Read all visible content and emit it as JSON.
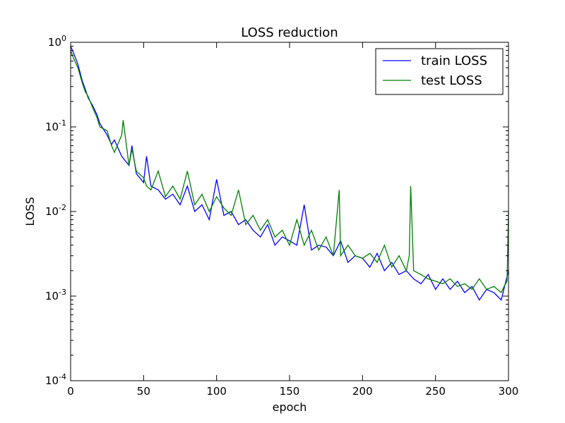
{
  "chart_data": {
    "type": "line",
    "title": "LOSS reduction",
    "xlabel": "epoch",
    "ylabel": "LOSS",
    "xlim": [
      0,
      300
    ],
    "ylim": [
      0.0001,
      1
    ],
    "yscale": "log",
    "grid": false,
    "legend_position": "top-right",
    "x_ticks": [
      0,
      50,
      100,
      150,
      200,
      250,
      300
    ],
    "x_tick_labels": [
      "0",
      "50",
      "100",
      "150",
      "200",
      "250",
      "300"
    ],
    "y_ticks": [
      1,
      0.1,
      0.01,
      0.001,
      0.0001
    ],
    "y_tick_labels": [
      {
        "base": "10",
        "exp": "0"
      },
      {
        "base": "10",
        "exp": "-1"
      },
      {
        "base": "10",
        "exp": "-2"
      },
      {
        "base": "10",
        "exp": "-3"
      },
      {
        "base": "10",
        "exp": "-4"
      }
    ],
    "series": [
      {
        "name": "train LOSS",
        "color": "#0000ff",
        "x": [
          0,
          2,
          5,
          8,
          10,
          12,
          15,
          18,
          20,
          25,
          28,
          30,
          35,
          40,
          42,
          45,
          50,
          52,
          55,
          60,
          65,
          70,
          75,
          80,
          85,
          90,
          95,
          100,
          105,
          110,
          115,
          120,
          125,
          130,
          135,
          140,
          145,
          150,
          155,
          160,
          165,
          170,
          175,
          180,
          185,
          190,
          195,
          200,
          205,
          210,
          215,
          220,
          225,
          230,
          235,
          240,
          245,
          250,
          255,
          260,
          265,
          270,
          275,
          280,
          285,
          290,
          295,
          300
        ],
        "values": [
          0.9,
          0.75,
          0.55,
          0.35,
          0.28,
          0.22,
          0.18,
          0.14,
          0.11,
          0.08,
          0.062,
          0.07,
          0.045,
          0.035,
          0.06,
          0.028,
          0.022,
          0.045,
          0.02,
          0.018,
          0.014,
          0.016,
          0.012,
          0.02,
          0.01,
          0.012,
          0.008,
          0.024,
          0.009,
          0.01,
          0.007,
          0.008,
          0.006,
          0.005,
          0.007,
          0.004,
          0.005,
          0.0045,
          0.004,
          0.012,
          0.0035,
          0.004,
          0.0038,
          0.003,
          0.0045,
          0.0025,
          0.003,
          0.0028,
          0.0022,
          0.0032,
          0.002,
          0.0025,
          0.0018,
          0.002,
          0.0016,
          0.0014,
          0.0018,
          0.0012,
          0.0016,
          0.0012,
          0.0015,
          0.0011,
          0.0013,
          0.0009,
          0.0012,
          0.0011,
          0.0009,
          0.002
        ]
      },
      {
        "name": "test LOSS",
        "color": "#008000",
        "x": [
          0,
          2,
          5,
          8,
          10,
          12,
          15,
          18,
          20,
          25,
          28,
          30,
          35,
          36,
          40,
          42,
          45,
          50,
          52,
          55,
          60,
          65,
          70,
          75,
          80,
          85,
          90,
          95,
          100,
          105,
          110,
          115,
          120,
          125,
          130,
          135,
          140,
          145,
          150,
          155,
          160,
          165,
          170,
          175,
          180,
          184,
          185,
          190,
          195,
          200,
          205,
          210,
          215,
          220,
          225,
          230,
          232,
          233,
          235,
          240,
          245,
          250,
          255,
          260,
          265,
          270,
          275,
          280,
          285,
          290,
          295,
          297,
          299,
          300
        ],
        "values": [
          0.8,
          0.65,
          0.5,
          0.33,
          0.26,
          0.23,
          0.17,
          0.13,
          0.1,
          0.09,
          0.06,
          0.05,
          0.08,
          0.12,
          0.035,
          0.055,
          0.03,
          0.025,
          0.02,
          0.018,
          0.03,
          0.015,
          0.02,
          0.014,
          0.03,
          0.012,
          0.016,
          0.01,
          0.015,
          0.011,
          0.009,
          0.018,
          0.007,
          0.009,
          0.006,
          0.008,
          0.005,
          0.006,
          0.004,
          0.008,
          0.004,
          0.006,
          0.0035,
          0.005,
          0.003,
          0.018,
          0.003,
          0.004,
          0.003,
          0.0028,
          0.0032,
          0.0025,
          0.004,
          0.0022,
          0.003,
          0.002,
          0.003,
          0.02,
          0.002,
          0.0018,
          0.0016,
          0.0015,
          0.0014,
          0.0016,
          0.0013,
          0.0014,
          0.0012,
          0.0016,
          0.0012,
          0.0013,
          0.0011,
          0.0013,
          0.0015,
          0.01
        ]
      }
    ]
  }
}
